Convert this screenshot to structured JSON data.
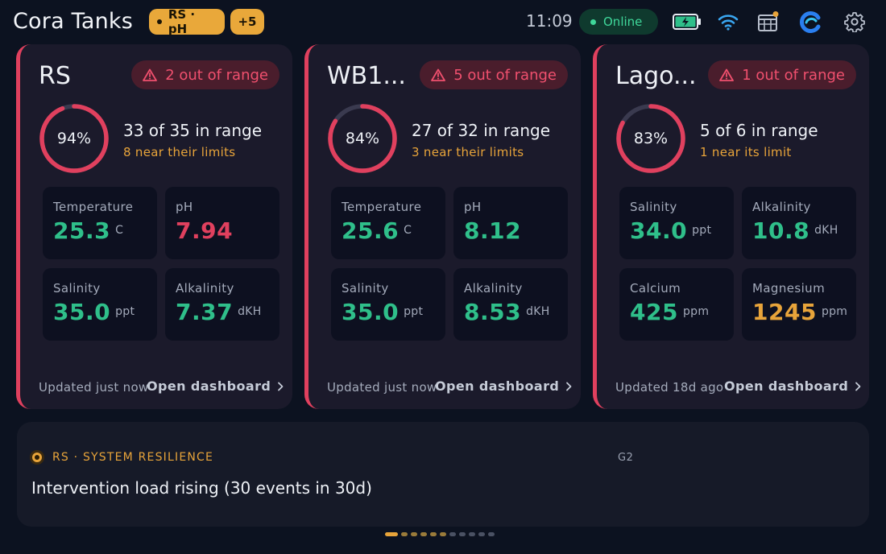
{
  "header": {
    "title": "Cora Tanks",
    "tank_pill": "RS · pH",
    "more_pill": "+5",
    "time": "11:09",
    "status": "Online",
    "icons": [
      "battery-charging-icon",
      "wifi-icon",
      "calendar-icon",
      "edge-browser-icon",
      "gear-icon"
    ]
  },
  "colors": {
    "accent": "#e9a83a",
    "alert": "#e0405e",
    "ok": "#2fbf8a",
    "warn": "#e8a43a"
  },
  "cards": [
    {
      "name": "RS",
      "alert": "2 out of range",
      "gauge_percent": 94,
      "gauge_label": "94%",
      "range": "33 of 35 in range",
      "near": "8 near their limits",
      "metrics": [
        {
          "label": "Temperature",
          "value": "25.3",
          "unit": "C",
          "status": "ok"
        },
        {
          "label": "pH",
          "value": "7.94",
          "unit": "",
          "status": "alert"
        },
        {
          "label": "Salinity",
          "value": "35.0",
          "unit": "ppt",
          "status": "ok"
        },
        {
          "label": "Alkalinity",
          "value": "7.37",
          "unit": "dKH",
          "status": "ok"
        }
      ],
      "updated": "Updated just now",
      "open": "Open dashboard"
    },
    {
      "name": "WB1...",
      "alert": "5 out of range",
      "gauge_percent": 84,
      "gauge_label": "84%",
      "range": "27 of 32 in range",
      "near": "3 near their limits",
      "metrics": [
        {
          "label": "Temperature",
          "value": "25.6",
          "unit": "C",
          "status": "ok"
        },
        {
          "label": "pH",
          "value": "8.12",
          "unit": "",
          "status": "ok"
        },
        {
          "label": "Salinity",
          "value": "35.0",
          "unit": "ppt",
          "status": "ok"
        },
        {
          "label": "Alkalinity",
          "value": "8.53",
          "unit": "dKH",
          "status": "ok"
        }
      ],
      "updated": "Updated just now",
      "open": "Open dashboard"
    },
    {
      "name": "Lago...",
      "alert": "1 out of range",
      "gauge_percent": 83,
      "gauge_label": "83%",
      "range": "5 of 6 in range",
      "near": "1 near its limit",
      "metrics": [
        {
          "label": "Salinity",
          "value": "34.0",
          "unit": "ppt",
          "status": "ok"
        },
        {
          "label": "Alkalinity",
          "value": "10.8",
          "unit": "dKH",
          "status": "ok"
        },
        {
          "label": "Calcium",
          "value": "425",
          "unit": "ppm",
          "status": "ok"
        },
        {
          "label": "Magnesium",
          "value": "1245",
          "unit": "ppm",
          "status": "warn"
        }
      ],
      "updated": "Updated 18d ago",
      "open": "Open dashboard"
    }
  ],
  "insight": {
    "kicker": "RS · SYSTEM RESILIENCE",
    "code": "G2",
    "title": "Intervention load rising (30 events in 30d)"
  },
  "pager": {
    "total": 11,
    "active": 0
  }
}
